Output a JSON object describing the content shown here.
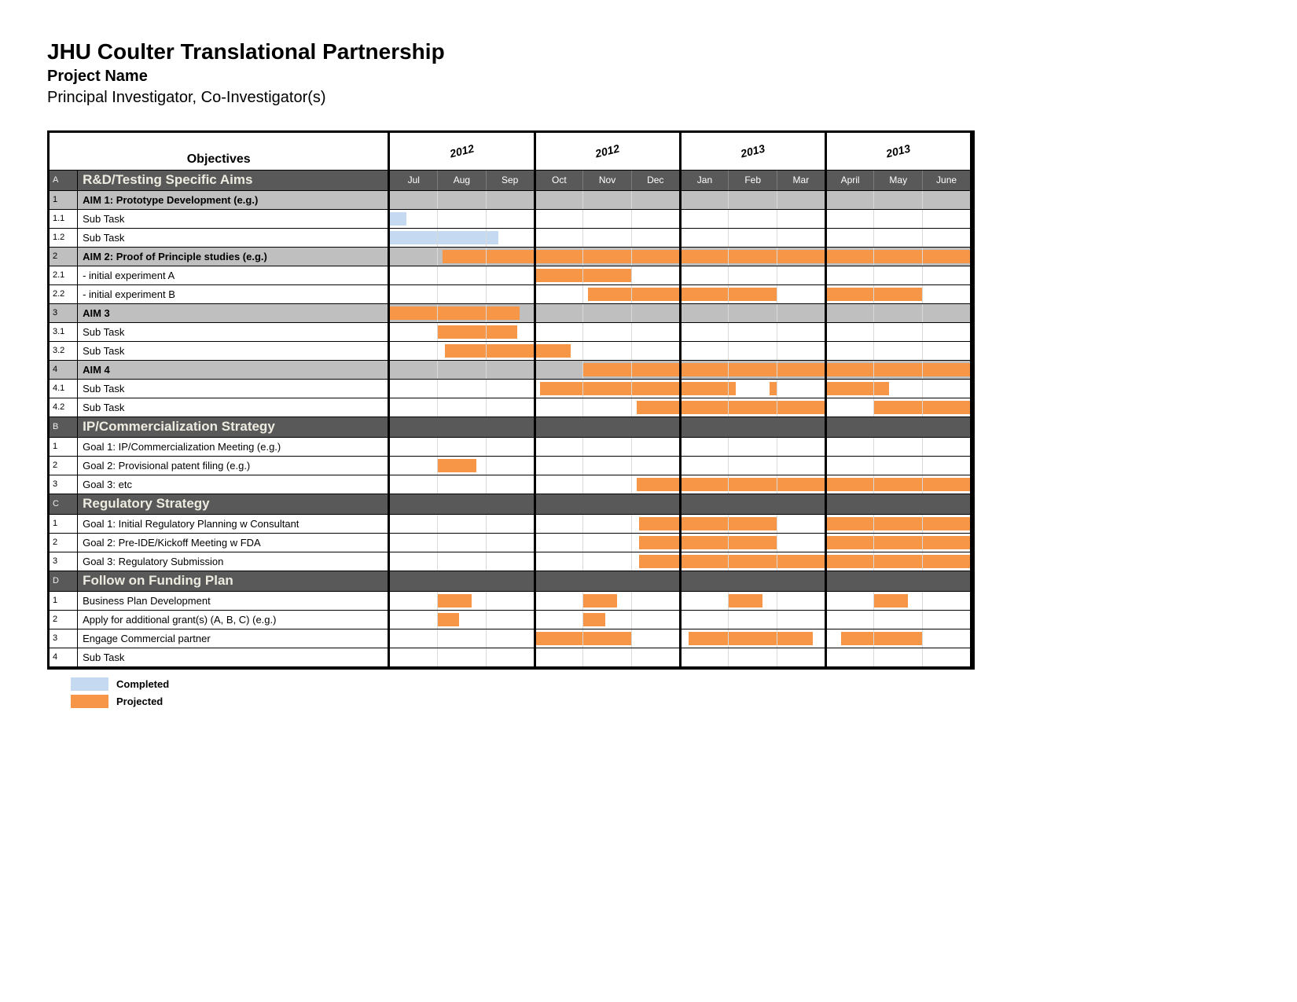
{
  "title": "JHU Coulter Translational Partnership",
  "subtitle": "Project Name",
  "investigators": "Principal Investigator, Co-Investigator(s)",
  "objectives_header": "Objectives",
  "colors": {
    "completed": "#c5d9f1",
    "projected": "#f79646",
    "section_bg": "#595959",
    "section_title": "#eeece1",
    "aim_bg": "#bfbfbf",
    "border": "#000000"
  },
  "legend": {
    "completed": "Completed",
    "projected": "Projected"
  },
  "year_groups": [
    "2012",
    "2012",
    "2013",
    "2013"
  ],
  "months": [
    "Jul",
    "Aug",
    "Sep",
    "Oct",
    "Nov",
    "Dec",
    "Jan",
    "Feb",
    "Mar",
    "April",
    "May",
    "June"
  ],
  "sections": [
    {
      "id": "A",
      "title": "R&D/Testing Specific Aims",
      "show_months": true,
      "title_color": "#eeece1",
      "rows": [
        {
          "type": "aim",
          "id": "1",
          "label": "AIM 1: Prototype Development (e.g.)",
          "bars": []
        },
        {
          "type": "task",
          "id": "1.1",
          "label": "Sub Task",
          "bars": [
            {
              "start": 0,
              "end": 0.35,
              "status": "completed"
            }
          ]
        },
        {
          "type": "task",
          "id": "1.2",
          "label": "Sub Task",
          "bars": [
            {
              "start": 0,
              "end": 2.25,
              "status": "completed"
            }
          ]
        },
        {
          "type": "aim",
          "id": "2",
          "label": "AIM 2: Proof of Principle studies (e.g.)",
          "bars": [
            {
              "start": 1.1,
              "end": 12,
              "status": "projected"
            }
          ]
        },
        {
          "type": "task",
          "id": "2.1",
          "label": " - initial experiment A",
          "bars": [
            {
              "start": 3,
              "end": 5,
              "status": "projected"
            }
          ]
        },
        {
          "type": "task",
          "id": "2.2",
          "label": " - initial experiment B",
          "bars": [
            {
              "start": 4.1,
              "end": 8,
              "status": "projected"
            },
            {
              "start": 9,
              "end": 11,
              "status": "projected"
            }
          ]
        },
        {
          "type": "aim",
          "id": "3",
          "label": "AIM 3",
          "bars": [
            {
              "start": 0,
              "end": 2.7,
              "status": "projected"
            }
          ]
        },
        {
          "type": "task",
          "id": "3.1",
          "label": "Sub Task",
          "bars": [
            {
              "start": 1,
              "end": 2.65,
              "status": "projected"
            }
          ]
        },
        {
          "type": "task",
          "id": "3.2",
          "label": "Sub Task",
          "bars": [
            {
              "start": 1.15,
              "end": 3.75,
              "status": "projected"
            }
          ]
        },
        {
          "type": "aim",
          "id": "4",
          "label": "AIM 4",
          "bars": [
            {
              "start": 4,
              "end": 12,
              "status": "projected"
            }
          ]
        },
        {
          "type": "task",
          "id": "4.1",
          "label": "Sub Task",
          "bars": [
            {
              "start": 3.1,
              "end": 7.15,
              "status": "projected"
            },
            {
              "start": 7.85,
              "end": 8,
              "status": "projected"
            },
            {
              "start": 9,
              "end": 10.3,
              "status": "projected"
            }
          ]
        },
        {
          "type": "task",
          "id": "4.2",
          "label": "Sub Task",
          "bars": [
            {
              "start": 5.1,
              "end": 9,
              "status": "projected"
            },
            {
              "start": 10,
              "end": 12,
              "status": "projected"
            }
          ]
        }
      ]
    },
    {
      "id": "B",
      "title": "IP/Commercialization Strategy",
      "show_months": false,
      "title_color": "#eeece1",
      "rows": [
        {
          "type": "task",
          "id": "1",
          "label": "Goal 1: IP/Commercialization Meeting (e.g.)",
          "bars": []
        },
        {
          "type": "task",
          "id": "2",
          "label": "Goal 2: Provisional patent filing (e.g.)",
          "bars": [
            {
              "start": 1,
              "end": 1.8,
              "status": "projected"
            }
          ]
        },
        {
          "type": "task",
          "id": "3",
          "label": "Goal 3: etc",
          "bars": [
            {
              "start": 5.1,
              "end": 12,
              "status": "projected"
            }
          ]
        }
      ]
    },
    {
      "id": "C",
      "title": "Regulatory Strategy",
      "show_months": false,
      "title_color": "#eeece1",
      "rows": [
        {
          "type": "task",
          "id": "1",
          "label": "Goal 1: Initial Regulatory Planning w Consultant",
          "bars": [
            {
              "start": 5.15,
              "end": 8,
              "status": "projected"
            },
            {
              "start": 9,
              "end": 12,
              "status": "projected"
            }
          ]
        },
        {
          "type": "task",
          "id": "2",
          "label": "Goal 2: Pre-IDE/Kickoff Meeting w FDA",
          "bars": [
            {
              "start": 5.15,
              "end": 8,
              "status": "projected"
            },
            {
              "start": 9,
              "end": 12,
              "status": "projected"
            }
          ]
        },
        {
          "type": "task",
          "id": "3",
          "label": "Goal 3: Regulatory Submission",
          "bars": [
            {
              "start": 5.15,
              "end": 12,
              "status": "projected"
            }
          ]
        }
      ]
    },
    {
      "id": "D",
      "title": "Follow on Funding Plan",
      "show_months": false,
      "title_color": "#eeece1",
      "rows": [
        {
          "type": "task",
          "id": "1",
          "label": "Business Plan Development",
          "bars": [
            {
              "start": 1,
              "end": 1.7,
              "status": "projected"
            },
            {
              "start": 4,
              "end": 4.7,
              "status": "projected"
            },
            {
              "start": 7,
              "end": 7.7,
              "status": "projected"
            },
            {
              "start": 10,
              "end": 10.7,
              "status": "projected"
            }
          ]
        },
        {
          "type": "task",
          "id": "2",
          "label": "Apply for additional grant(s) (A, B, C) (e.g.)",
          "bars": [
            {
              "start": 1,
              "end": 1.45,
              "status": "projected"
            },
            {
              "start": 4,
              "end": 4.45,
              "status": "projected"
            }
          ]
        },
        {
          "type": "task",
          "id": "3",
          "label": "Engage Commercial partner",
          "bars": [
            {
              "start": 3,
              "end": 5,
              "status": "projected"
            },
            {
              "start": 6.15,
              "end": 8.75,
              "status": "projected"
            },
            {
              "start": 9.3,
              "end": 11,
              "status": "projected"
            }
          ]
        },
        {
          "type": "task",
          "id": "4",
          "label": "Sub Task",
          "bars": []
        }
      ]
    }
  ]
}
